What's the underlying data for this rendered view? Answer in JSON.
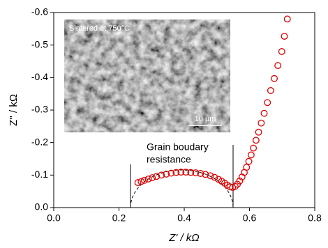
{
  "chart_data": {
    "type": "scatter",
    "xlabel": "Z' / kΩ",
    "ylabel": "Z'' / kΩ",
    "annotations": [
      "Grain boudary",
      "resistance"
    ],
    "inset_label": "Sintered at 750°C",
    "inset_scale": "10 μm",
    "color": "#e00000",
    "marker": "hollow-circle",
    "x": [
      0.258,
      0.268,
      0.278,
      0.29,
      0.302,
      0.315,
      0.33,
      0.345,
      0.36,
      0.375,
      0.39,
      0.405,
      0.42,
      0.435,
      0.45,
      0.465,
      0.48,
      0.493,
      0.505,
      0.515,
      0.524,
      0.532,
      0.54,
      0.548,
      0.556,
      0.563,
      0.57,
      0.577,
      0.584,
      0.591,
      0.598,
      0.605,
      0.612,
      0.62,
      0.628,
      0.636,
      0.645,
      0.655,
      0.665,
      0.676,
      0.687,
      0.699,
      0.707,
      0.716
    ],
    "values": [
      -0.077,
      -0.08,
      -0.084,
      -0.088,
      -0.092,
      -0.096,
      -0.1,
      -0.103,
      -0.106,
      -0.108,
      -0.109,
      -0.109,
      -0.108,
      -0.107,
      -0.105,
      -0.102,
      -0.098,
      -0.093,
      -0.087,
      -0.081,
      -0.075,
      -0.069,
      -0.064,
      -0.062,
      -0.065,
      -0.072,
      -0.082,
      -0.094,
      -0.108,
      -0.124,
      -0.142,
      -0.162,
      -0.183,
      -0.207,
      -0.232,
      -0.26,
      -0.29,
      -0.323,
      -0.36,
      -0.397,
      -0.437,
      -0.48,
      -0.527,
      -0.58
    ],
    "xlim": [
      0,
      0.8
    ],
    "xticks": [
      {
        "value": 0,
        "label": "0.0"
      },
      0.2,
      0.4,
      0.6,
      0.8
    ],
    "ylim": [
      0,
      -0.6
    ],
    "yticks": [
      {
        "value": 0,
        "label": "0.0"
      },
      -0.1,
      -0.2,
      -0.3,
      -0.4,
      -0.5,
      -0.6
    ]
  }
}
